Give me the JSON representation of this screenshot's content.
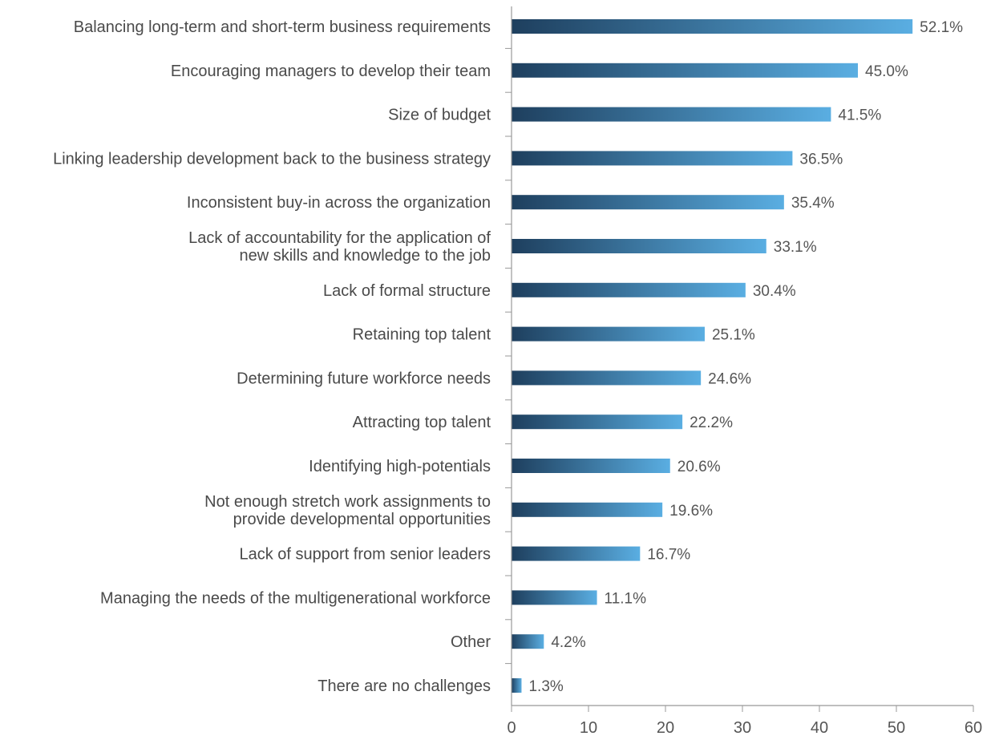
{
  "chart_data": {
    "type": "bar",
    "orientation": "horizontal",
    "title": "",
    "xlabel": "",
    "ylabel": "",
    "xlim": [
      0,
      60
    ],
    "x_ticks": [
      0,
      10,
      20,
      30,
      40,
      50,
      60
    ],
    "grid": false,
    "categories": [
      "Balancing long-term and short-term business requirements",
      "Encouraging managers to develop their team",
      "Size of budget",
      "Linking leadership development back to the business strategy",
      "Inconsistent buy-in across the organization",
      "Lack of accountability for the application of new skills and knowledge to the job",
      "Lack of formal structure",
      "Retaining top talent",
      "Determining future workforce needs",
      "Attracting top talent",
      "Identifying high-potentials",
      "Not enough stretch work assignments to provide developmental opportunities",
      "Lack of support from senior leaders",
      "Managing the needs of the multigenerational workforce",
      "Other",
      "There are no challenges"
    ],
    "category_lines": [
      [
        "Balancing long-term and short-term business requirements"
      ],
      [
        "Encouraging managers to develop their team"
      ],
      [
        "Size of budget"
      ],
      [
        "Linking leadership development back to the business strategy"
      ],
      [
        "Inconsistent buy-in across the organization"
      ],
      [
        "Lack of accountability for the application of",
        "new skills and knowledge to the job"
      ],
      [
        "Lack of formal structure"
      ],
      [
        "Retaining top talent"
      ],
      [
        "Determining future workforce needs"
      ],
      [
        "Attracting top talent"
      ],
      [
        "Identifying high-potentials"
      ],
      [
        "Not enough stretch work assignments to",
        "provide developmental opportunities"
      ],
      [
        "Lack of support from senior leaders"
      ],
      [
        "Managing the needs of the multigenerational workforce"
      ],
      [
        "Other"
      ],
      [
        "There are no challenges"
      ]
    ],
    "values": [
      52.1,
      45.0,
      41.5,
      36.5,
      35.4,
      33.1,
      30.4,
      25.1,
      24.6,
      22.2,
      20.6,
      19.6,
      16.7,
      11.1,
      4.2,
      1.3
    ],
    "value_labels": [
      "52.1%",
      "45.0%",
      "41.5%",
      "36.5%",
      "35.4%",
      "33.1%",
      "30.4%",
      "25.1%",
      "24.6%",
      "22.2%",
      "20.6%",
      "19.6%",
      "16.7%",
      "11.1%",
      "4.2%",
      "1.3%"
    ],
    "colors": {
      "bar_gradient_start": "#1e3f5e",
      "bar_gradient_end": "#5aaee2",
      "axis": "#999999",
      "label_text": "#4a4a4a"
    }
  }
}
